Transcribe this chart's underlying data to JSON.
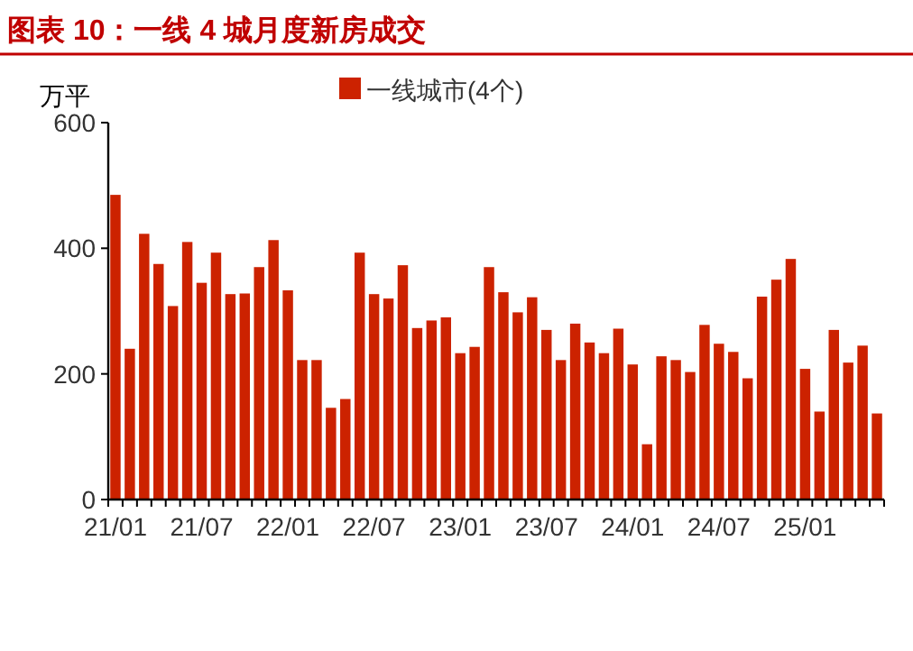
{
  "chart_data": {
    "type": "bar",
    "title": "图表 10：一线 4 城月度新房成交",
    "ylabel": "万平",
    "categories": [
      "21/01",
      null,
      null,
      null,
      null,
      null,
      "21/07",
      null,
      null,
      null,
      null,
      null,
      "22/01",
      null,
      null,
      null,
      null,
      null,
      "22/07",
      null,
      null,
      null,
      null,
      null,
      "23/01",
      null,
      null,
      null,
      null,
      null,
      "23/07",
      null,
      null,
      null,
      null,
      null,
      "24/01",
      null,
      null,
      null,
      null,
      null,
      "24/07",
      null,
      null,
      null,
      null,
      null,
      "25/01",
      null,
      null,
      null,
      null,
      null
    ],
    "series": [
      {
        "name": "一线城市(4个)",
        "color": "#cc2200",
        "values": [
          485,
          240,
          423,
          375,
          308,
          410,
          345,
          393,
          327,
          328,
          370,
          413,
          333,
          222,
          222,
          146,
          160,
          393,
          327,
          320,
          373,
          273,
          285,
          290,
          233,
          243,
          370,
          330,
          298,
          322,
          270,
          222,
          280,
          250,
          233,
          272,
          215,
          88,
          228,
          222,
          203,
          278,
          248,
          235,
          193,
          323,
          350,
          383,
          208,
          140,
          270,
          218,
          245,
          137
        ]
      }
    ],
    "ylim": [
      0,
      600
    ],
    "yticks": [
      0,
      200,
      400,
      600
    ],
    "legend": "top"
  }
}
